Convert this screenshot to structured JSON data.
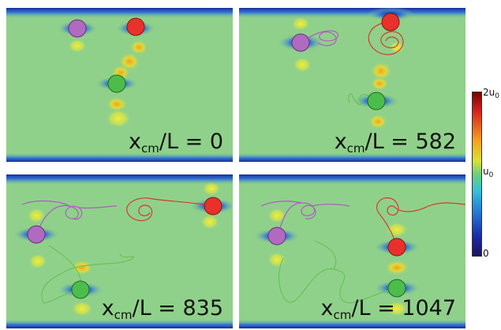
{
  "panels": [
    {
      "label_main": "x",
      "label_sub": "cm",
      "label_suffix": "/L = 0"
    },
    {
      "label_main": "x",
      "label_sub": "cm",
      "label_suffix": "/L = 582"
    },
    {
      "label_main": "x",
      "label_sub": "cm",
      "label_suffix": "/L = 835"
    },
    {
      "label_main": "x",
      "label_sub": "cm",
      "label_suffix": "/L = 1047"
    }
  ],
  "colorbar": {
    "top_label_main": "2u",
    "top_label_sub": "0",
    "mid_label_main": "u",
    "mid_label_sub": "0",
    "bottom_label": "0"
  },
  "colors": {
    "red_particle": "#e8312a",
    "purple_particle": "#b06ac0",
    "green_particle": "#4cbd4a",
    "background_field": "#8fd18a",
    "wall": "#1f2f9a"
  }
}
